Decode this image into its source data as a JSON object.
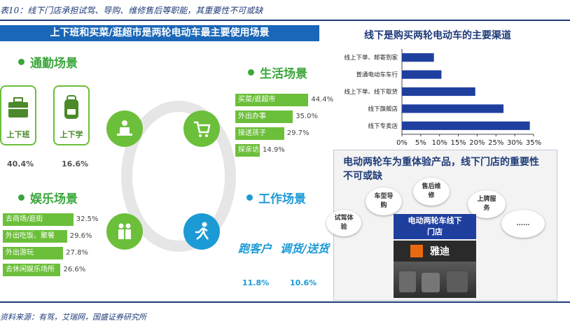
{
  "caption": "表10：线下门店承担试驾、导购、维修售后等职能，其重要性不可或缺",
  "source": "资料来源：有驾，艾瑞网，国盛证券研究所",
  "left_panel": {
    "title": "上下班和买菜/逛超市是两轮电动车最主要使用场景",
    "commute": {
      "title": "通勤场景",
      "items": [
        {
          "label": "上下班",
          "pct": "40.4%"
        },
        {
          "label": "上下学",
          "pct": "16.6%"
        }
      ]
    },
    "life": {
      "title": "生活场景",
      "items": [
        {
          "label": "买菜/逛超市",
          "value": 44.4,
          "display": "44.4%"
        },
        {
          "label": "外出办事",
          "value": 35.0,
          "display": "35.0%"
        },
        {
          "label": "接送孩子",
          "value": 29.7,
          "display": "29.7%"
        },
        {
          "label": "探亲访友",
          "value": 14.9,
          "display": "14.9%"
        }
      ]
    },
    "entertainment": {
      "title": "娱乐场景",
      "items": [
        {
          "label": "去商场/逛街",
          "value": 32.5,
          "display": "32.5%"
        },
        {
          "label": "外出吃饭、聚餐",
          "value": 29.6,
          "display": "29.6%"
        },
        {
          "label": "外出游玩",
          "value": 27.8,
          "display": "27.8%"
        },
        {
          "label": "去休闲娱乐场所",
          "value": 26.6,
          "display": "26.6%"
        }
      ]
    },
    "work": {
      "title": "工作场景",
      "items": [
        {
          "label": "跑客户",
          "pct": "11.8%"
        },
        {
          "label": "调货/送货",
          "pct": "10.6%"
        }
      ]
    },
    "colors": {
      "green": "#6cbf3a",
      "blue": "#1c9ad6",
      "header": "#1a66b8"
    }
  },
  "chart_data": {
    "type": "bar",
    "orientation": "horizontal",
    "title": "线下是购买两轮电动车的主要渠道",
    "categories": [
      "线上下单、邮寄到家",
      "普通电动车车行",
      "线上下单、线下取货",
      "线下旗舰店",
      "线下专卖店"
    ],
    "values": [
      8.5,
      10.5,
      19.5,
      27,
      34
    ],
    "xlim": [
      0,
      35
    ],
    "xticks": [
      "0%",
      "5%",
      "10%",
      "15%",
      "20%",
      "25%",
      "30%",
      "35%"
    ],
    "grid": false,
    "bar_color": "#1f3f9f"
  },
  "store_panel": {
    "title": "电动两轮车为重体验产品，线下门店的重要性不可或缺",
    "bubbles": [
      "试驾体验",
      "车型导购",
      "售后维修",
      "上牌服务",
      "......"
    ],
    "center_label": "电动两轮车线下门店",
    "brand_text": "雅迪"
  }
}
